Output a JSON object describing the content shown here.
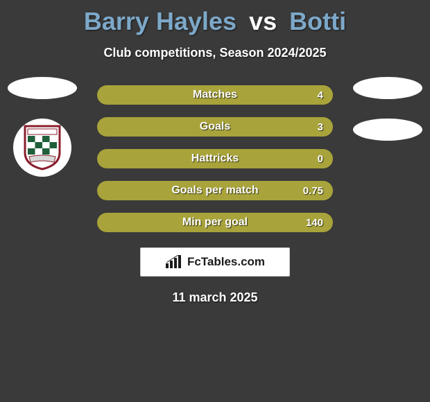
{
  "title": {
    "player1": "Barry Hayles",
    "vs": "vs",
    "player2": "Botti"
  },
  "subtitle": "Club competitions, Season 2024/2025",
  "colors": {
    "bar_bg": "#a8a33b",
    "bar_fill": "#a8a33b",
    "background": "#3a3a3a",
    "title_player": "#7da8c9"
  },
  "bars": [
    {
      "label": "Matches",
      "value": "4",
      "fill_pct": 100
    },
    {
      "label": "Goals",
      "value": "3",
      "fill_pct": 100
    },
    {
      "label": "Hattricks",
      "value": "0",
      "fill_pct": 100
    },
    {
      "label": "Goals per match",
      "value": "0.75",
      "fill_pct": 100
    },
    {
      "label": "Min per goal",
      "value": "140",
      "fill_pct": 100
    }
  ],
  "logo": {
    "text": "FcTables.com"
  },
  "date": "11 march 2025",
  "badge": {
    "shield_border": "#8a1f2d",
    "shield_top": "#ffffff",
    "check_dark": "#1f5f3a",
    "check_light": "#ffffff",
    "banner": "#d9d9d9"
  }
}
